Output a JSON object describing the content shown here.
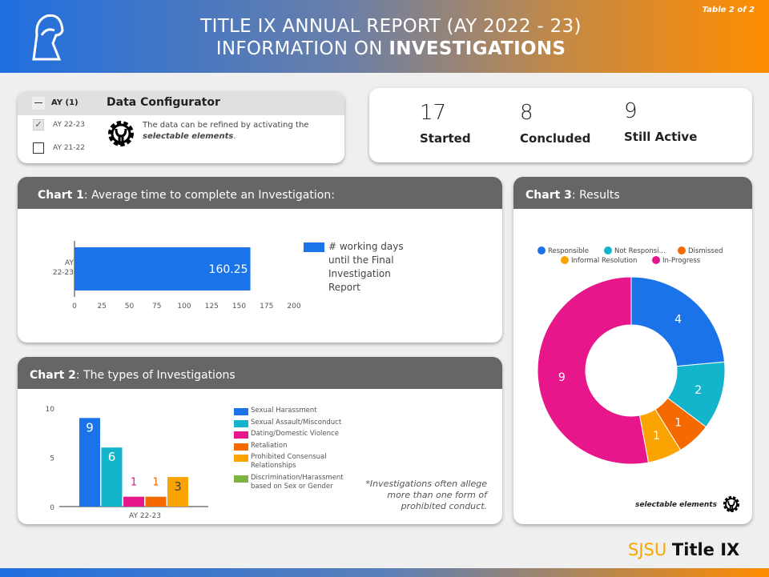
{
  "header": {
    "line1": "TITLE IX ANNUAL REPORT (AY 2022 - 23)",
    "line2_prefix": "INFORMATION ON ",
    "line2_bold": "INVESTIGATIONS",
    "table_label": "Table 2 of 2"
  },
  "configurator": {
    "filter_label": "AY (1)",
    "title": "Data Configurator",
    "options": [
      {
        "label": "AY 22-23",
        "checked": true
      },
      {
        "label": "AY 21-22",
        "checked": false
      }
    ],
    "text": "The data can be refined by activating the ",
    "text_bold": "selectable elements",
    "text_end": "."
  },
  "stats": [
    {
      "value": "17",
      "label": "Started"
    },
    {
      "value": "8",
      "label": "Concluded"
    },
    {
      "value": "9",
      "label": "Still Active"
    }
  ],
  "chart_data": [
    {
      "type": "bar",
      "orientation": "horizontal",
      "title_bold": "Chart 1",
      "title": ": Average time to complete an Investigation:",
      "categories": [
        "AY 22-23"
      ],
      "category_lines": [
        "AY",
        "22-23"
      ],
      "values": [
        160.25
      ],
      "value_label": "160.25",
      "xlim": [
        0,
        200
      ],
      "xticks": [
        "0",
        "25",
        "50",
        "75",
        "100",
        "125",
        "150",
        "175",
        "200"
      ],
      "legend": [
        {
          "name": "# working days until the Final Investigation Report",
          "color": "#1a73e8"
        }
      ]
    },
    {
      "type": "bar",
      "title_bold": "Chart 2",
      "title": ": The types of Investigations",
      "categories": [
        "AY 22-23"
      ],
      "ylim": [
        0,
        10
      ],
      "yticks": [
        "0",
        "5",
        "10"
      ],
      "series": [
        {
          "name": "Sexual Harassment",
          "values": [
            9
          ],
          "color": "#1a73e8"
        },
        {
          "name": "Sexual Assault/Misconduct",
          "values": [
            6
          ],
          "color": "#12b5cb"
        },
        {
          "name": "Dating/Domestic Violence",
          "values": [
            1
          ],
          "color": "#e8168b"
        },
        {
          "name": "Retaliation",
          "values": [
            1
          ],
          "color": "#f56a00"
        },
        {
          "name": "Prohibited Consensual Relationships",
          "values": [
            3
          ],
          "color": "#fba300"
        },
        {
          "name": "Discrimination/Harassment based on Sex or Gender",
          "values": [
            0
          ],
          "color": "#7cb342"
        }
      ],
      "note": "*Investigations often allege more than one form of prohibited conduct."
    },
    {
      "type": "pie",
      "donut": true,
      "title_bold": "Chart 3",
      "title": ": Results",
      "slices": [
        {
          "name": "Responsible",
          "value": 4,
          "color": "#1a73e8"
        },
        {
          "name": "Not Responsi...",
          "value": 2,
          "color": "#12b5cb"
        },
        {
          "name": "Dismissed",
          "value": 1,
          "color": "#f56a00"
        },
        {
          "name": "Informal Resolution",
          "value": 1,
          "color": "#fba300"
        },
        {
          "name": "In-Progress",
          "value": 9,
          "color": "#e8168b"
        }
      ],
      "legend_position": "top",
      "footnote": "selectable elements"
    }
  ],
  "footer": {
    "brand": "SJSU",
    "product": "Title IX"
  }
}
